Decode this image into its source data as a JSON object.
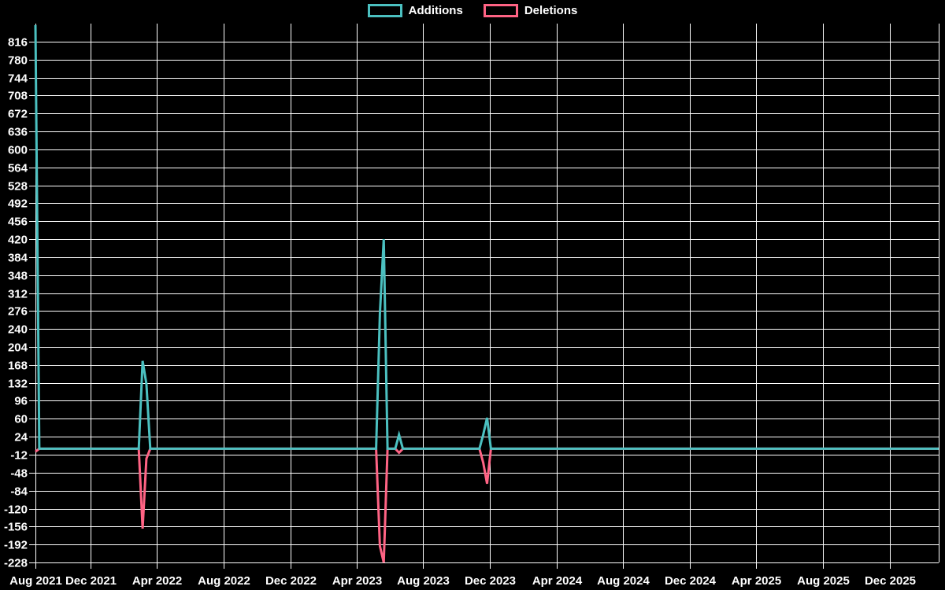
{
  "chart_data": {
    "type": "line",
    "title": "",
    "xlabel": "",
    "ylabel": "",
    "legend_position": "top",
    "grid": true,
    "colors": {
      "background": "#000000",
      "grid": "#ffffff",
      "text": "#ffffff",
      "additions": "#4bc0c0",
      "deletions": "#ff6384"
    },
    "legend": [
      {
        "label": "Additions",
        "color": "#4bc0c0"
      },
      {
        "label": "Deletions",
        "color": "#ff6384"
      }
    ],
    "x_axis": {
      "type": "time",
      "start": "2021-08-22",
      "end": "2026-03-01",
      "ticks": [
        {
          "date": "2021-08-22",
          "label": "Aug 2021"
        },
        {
          "date": "2021-12-01",
          "label": "Dec 2021"
        },
        {
          "date": "2022-04-01",
          "label": "Apr 2022"
        },
        {
          "date": "2022-08-01",
          "label": "Aug 2022"
        },
        {
          "date": "2022-12-01",
          "label": "Dec 2022"
        },
        {
          "date": "2023-04-01",
          "label": "Apr 2023"
        },
        {
          "date": "2023-08-01",
          "label": "Aug 2023"
        },
        {
          "date": "2023-12-01",
          "label": "Dec 2023"
        },
        {
          "date": "2024-04-01",
          "label": "Apr 2024"
        },
        {
          "date": "2024-08-01",
          "label": "Aug 2024"
        },
        {
          "date": "2024-12-01",
          "label": "Dec 2024"
        },
        {
          "date": "2025-04-01",
          "label": "Apr 2025"
        },
        {
          "date": "2025-08-01",
          "label": "Aug 2025"
        },
        {
          "date": "2025-12-01",
          "label": "Dec 2025"
        }
      ]
    },
    "y_axis": {
      "min": -228,
      "max": 852,
      "tick_step": 36,
      "ticks": [
        816,
        780,
        744,
        708,
        672,
        636,
        600,
        564,
        528,
        492,
        456,
        420,
        384,
        348,
        312,
        276,
        240,
        204,
        168,
        132,
        96,
        60,
        24,
        -12,
        -48,
        -84,
        -120,
        -156,
        -192,
        -228
      ]
    },
    "series": [
      {
        "name": "Additions",
        "color": "#4bc0c0",
        "points": [
          [
            "2021-08-22",
            849
          ],
          [
            "2021-08-29",
            0
          ],
          [
            "2022-02-27",
            0
          ],
          [
            "2022-03-06",
            176
          ],
          [
            "2022-03-13",
            130
          ],
          [
            "2022-03-20",
            0
          ],
          [
            "2023-05-07",
            0
          ],
          [
            "2023-05-14",
            270
          ],
          [
            "2023-05-21",
            420
          ],
          [
            "2023-05-28",
            0
          ],
          [
            "2023-06-11",
            0
          ],
          [
            "2023-06-18",
            28
          ],
          [
            "2023-06-25",
            0
          ],
          [
            "2023-11-12",
            0
          ],
          [
            "2023-11-19",
            28
          ],
          [
            "2023-11-26",
            62
          ],
          [
            "2023-12-03",
            0
          ],
          [
            "2026-03-01",
            0
          ]
        ]
      },
      {
        "name": "Deletions",
        "color": "#ff6384",
        "points": [
          [
            "2021-08-22",
            -6
          ],
          [
            "2021-08-29",
            0
          ],
          [
            "2022-02-27",
            0
          ],
          [
            "2022-03-06",
            -160
          ],
          [
            "2022-03-13",
            -20
          ],
          [
            "2022-03-20",
            0
          ],
          [
            "2023-05-07",
            0
          ],
          [
            "2023-05-14",
            -195
          ],
          [
            "2023-05-21",
            -228
          ],
          [
            "2023-05-28",
            0
          ],
          [
            "2023-06-11",
            0
          ],
          [
            "2023-06-18",
            -8
          ],
          [
            "2023-06-25",
            0
          ],
          [
            "2023-11-12",
            0
          ],
          [
            "2023-11-19",
            -28
          ],
          [
            "2023-11-26",
            -70
          ],
          [
            "2023-12-03",
            0
          ],
          [
            "2026-03-01",
            0
          ]
        ]
      }
    ]
  }
}
